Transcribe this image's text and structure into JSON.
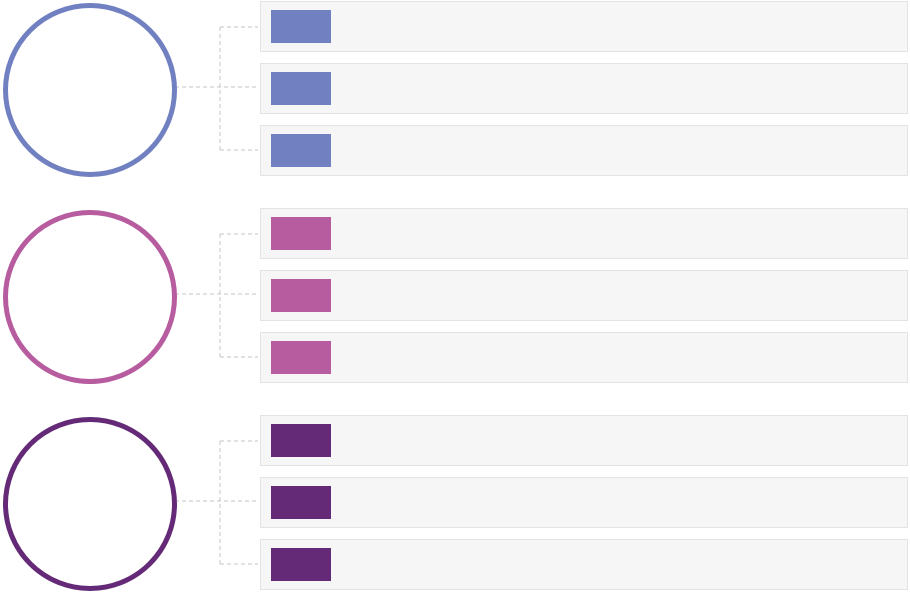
{
  "groups": [
    {
      "color": "#7080c0",
      "items": [
        {
          "text": ""
        },
        {
          "text": ""
        },
        {
          "text": ""
        }
      ]
    },
    {
      "color": "#b65c9f",
      "items": [
        {
          "text": ""
        },
        {
          "text": ""
        },
        {
          "text": ""
        }
      ]
    },
    {
      "color": "#642a77",
      "items": [
        {
          "text": ""
        },
        {
          "text": ""
        },
        {
          "text": ""
        }
      ]
    }
  ]
}
